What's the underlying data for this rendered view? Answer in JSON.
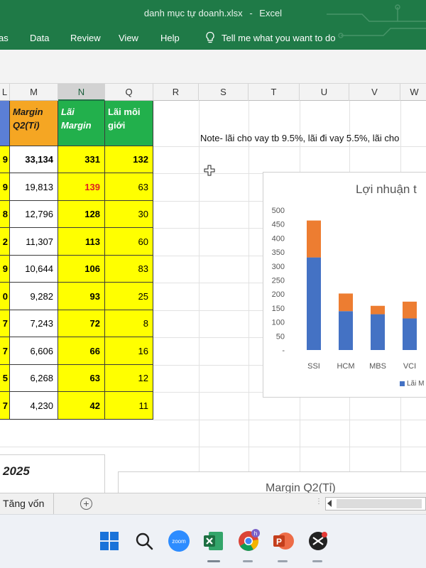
{
  "window": {
    "file_name": "danh mục tự doanh.xlsx",
    "separator": "-",
    "app_name": "Excel"
  },
  "ribbon": {
    "tabs": [
      "as",
      "Data",
      "Review",
      "View",
      "Help"
    ],
    "tell_me": "Tell me what you want to do"
  },
  "columns": [
    "L",
    "M",
    "N",
    "Q",
    "R",
    "S",
    "T",
    "U",
    "V",
    "W"
  ],
  "selected_column": "N",
  "table": {
    "headers": {
      "margin": "Margin Q2(Tỉ)",
      "lai_margin": "Lãi Margin",
      "lai_moi_gioi": "Lãi môi giới"
    },
    "rows": [
      {
        "l": "9",
        "margin": "33,134",
        "lai_margin": "331",
        "lai_moi_gioi": "132"
      },
      {
        "l": "9",
        "margin": "19,813",
        "lai_margin": "139",
        "lai_moi_gioi": "63"
      },
      {
        "l": "8",
        "margin": "12,796",
        "lai_margin": "128",
        "lai_moi_gioi": "30"
      },
      {
        "l": "2",
        "margin": "11,307",
        "lai_margin": "113",
        "lai_moi_gioi": "60"
      },
      {
        "l": "9",
        "margin": "10,644",
        "lai_margin": "106",
        "lai_moi_gioi": "83"
      },
      {
        "l": "0",
        "margin": "9,282",
        "lai_margin": "93",
        "lai_moi_gioi": "25"
      },
      {
        "l": "7",
        "margin": "7,243",
        "lai_margin": "72",
        "lai_moi_gioi": "8"
      },
      {
        "l": "7",
        "margin": "6,606",
        "lai_margin": "66",
        "lai_moi_gioi": "16"
      },
      {
        "l": "5",
        "margin": "6,268",
        "lai_margin": "63",
        "lai_moi_gioi": "12"
      },
      {
        "l": "7",
        "margin": "4,230",
        "lai_margin": "42",
        "lai_moi_gioi": "11"
      }
    ]
  },
  "note": "Note- lãi cho vay tb 9.5%, lãi đi vay 5.5%, lãi cho",
  "chart_data": {
    "type": "bar",
    "stacked": true,
    "title": "Lợi nhuận t",
    "categories": [
      "SSI",
      "HCM",
      "MBS",
      "VCI"
    ],
    "ylim": [
      0,
      500
    ],
    "yticks": [
      "500",
      "450",
      "400",
      "350",
      "300",
      "250",
      "200",
      "150",
      "100",
      "50",
      "-"
    ],
    "series": [
      {
        "name": "Lãi M",
        "color": "#4472c4",
        "values": [
          331,
          139,
          128,
          113
        ]
      },
      {
        "color": "#ed7d31",
        "values": [
          132,
          63,
          30,
          60
        ]
      }
    ],
    "legend_position": "bottom"
  },
  "lower": {
    "year": "2025",
    "chart2_title": "Margin Q2(Tỉ)"
  },
  "sheet_tabs": {
    "active": "Tăng vốn",
    "add_symbol": "+",
    "separator_dots": "⋮"
  },
  "taskbar": {
    "zoom_label": "zoom",
    "chrome_badge": "h",
    "icons": [
      "windows-start-icon",
      "search-icon",
      "zoom-icon",
      "excel-icon",
      "chrome-icon",
      "powerpoint-icon",
      "app-icon"
    ]
  }
}
